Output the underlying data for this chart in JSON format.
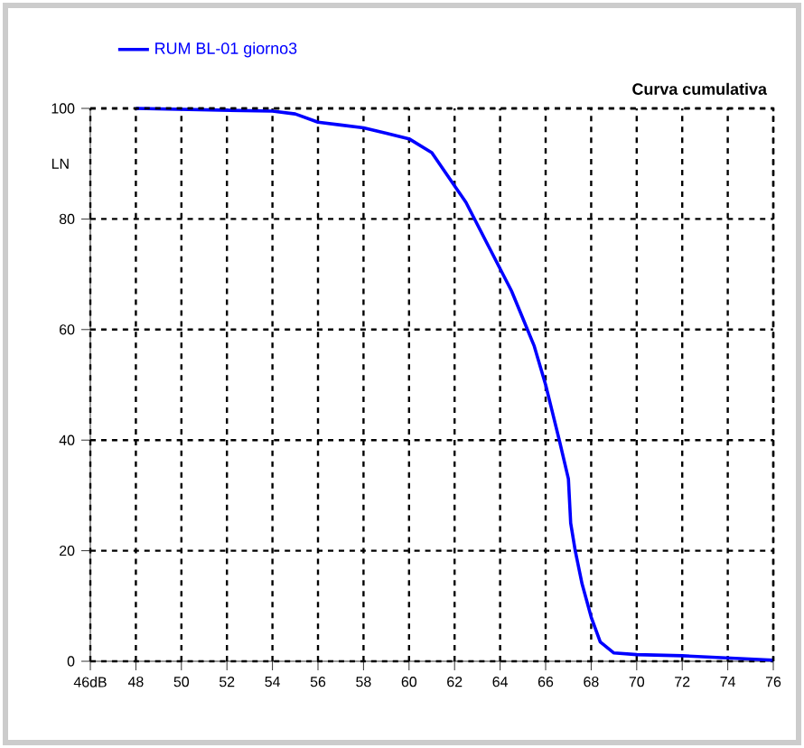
{
  "chart_data": {
    "type": "line",
    "title": "Curva cumulativa",
    "ylabel": "LN",
    "series": [
      {
        "name": "RUM BL-01 giorno3",
        "color": "#0000ff",
        "x": [
          48,
          54,
          55,
          56,
          57,
          58,
          59,
          60,
          61,
          61.5,
          62,
          62.5,
          63,
          63.5,
          64,
          64.5,
          65,
          65.5,
          66,
          66.3,
          66.6,
          67,
          67.1,
          67.3,
          67.6,
          68,
          68.4,
          69,
          70,
          72,
          74,
          76
        ],
        "values": [
          100,
          99.5,
          99,
          97.5,
          97,
          96.5,
          95.5,
          94.5,
          92,
          89,
          86,
          83,
          79,
          75,
          71,
          67,
          62,
          57,
          50,
          45,
          40,
          33,
          25,
          20,
          14,
          8,
          3.5,
          1.5,
          1.2,
          1,
          0.6,
          0.2
        ]
      }
    ],
    "xlim": [
      46,
      76
    ],
    "ylim": [
      0,
      100
    ],
    "xticks": [
      {
        "value": 46,
        "label": "46dB"
      },
      48,
      50,
      52,
      54,
      56,
      58,
      60,
      62,
      64,
      66,
      68,
      70,
      72,
      74,
      76
    ],
    "yticks": [
      0,
      20,
      40,
      60,
      80,
      100
    ],
    "grid": true,
    "legend": "top left",
    "marker": "none",
    "line_style": "solid"
  }
}
